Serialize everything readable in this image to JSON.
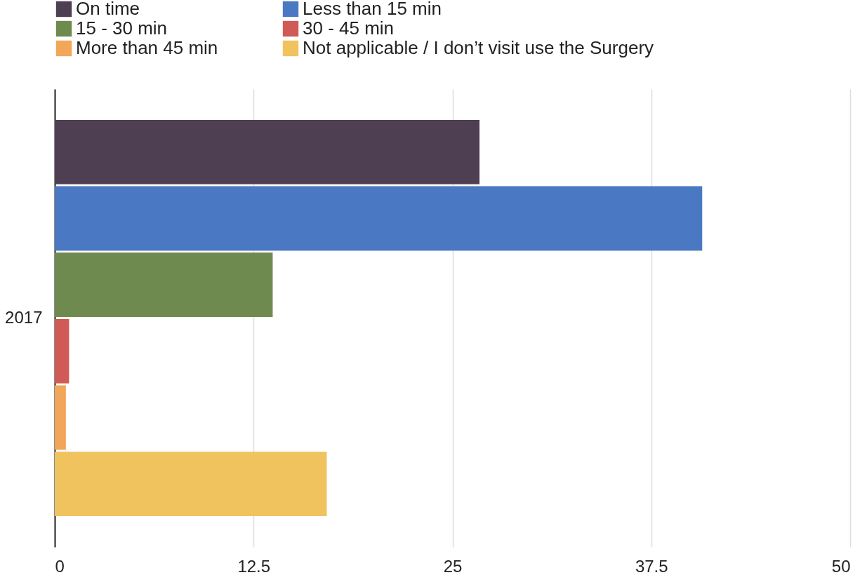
{
  "chart_data": {
    "type": "bar",
    "orientation": "horizontal",
    "categories": [
      "2017"
    ],
    "series": [
      {
        "name": "On time",
        "color": "#4f3f52",
        "values": [
          26.7
        ]
      },
      {
        "name": "Less than 15 min",
        "color": "#4a78c2",
        "values": [
          40.7
        ]
      },
      {
        "name": "15 - 30 min",
        "color": "#6f8a4e",
        "values": [
          13.7
        ]
      },
      {
        "name": "30 - 45 min",
        "color": "#d05a55",
        "values": [
          0.9
        ]
      },
      {
        "name": "More than 45 min",
        "color": "#f2a65a",
        "values": [
          0.7
        ]
      },
      {
        "name": "Not applicable / I don’t visit use the Surgery",
        "color": "#f0c35e",
        "values": [
          17.1
        ]
      }
    ],
    "xlim": [
      0,
      50
    ],
    "xticks": [
      0,
      12.5,
      25,
      37.5,
      50
    ],
    "grid": "x",
    "legend": "top left"
  }
}
